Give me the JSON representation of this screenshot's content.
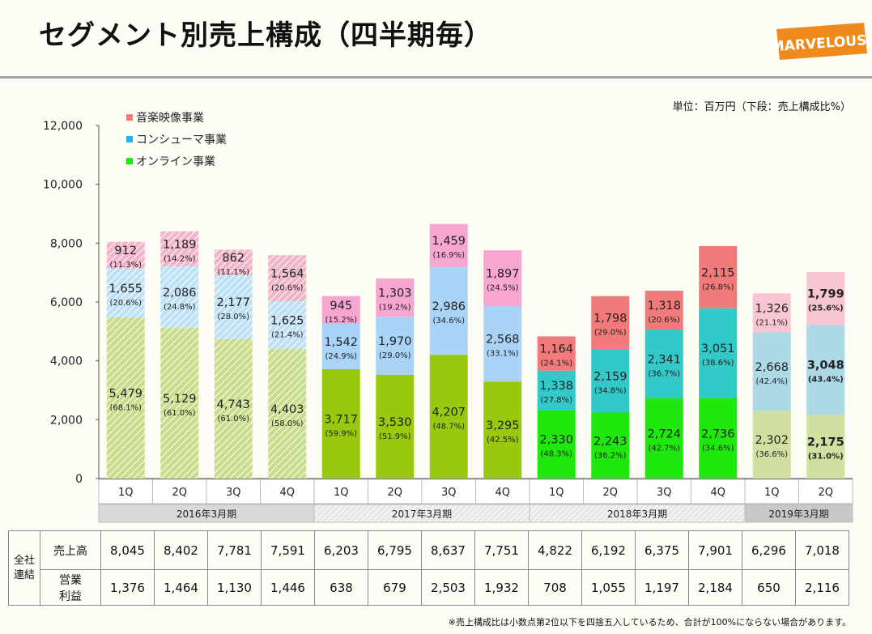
{
  "title": "セグメント別売上構成（四半期毎）",
  "logo_text": "MARVELOUS!",
  "unit_note": "単位：百万円（下段：売上構成比%）",
  "footnote": "※売上構成比は小数点第2位以下を四捨五入しているため、合計が100%にならない場合があります。",
  "chart_data": {
    "type": "bar",
    "stacked": true,
    "ylim": [
      0,
      12000
    ],
    "yticks": [
      "0",
      "2,000",
      "4,000",
      "6,000",
      "8,000",
      "10,000",
      "12,000"
    ],
    "categories": [
      "1Q",
      "2Q",
      "3Q",
      "4Q",
      "1Q",
      "2Q",
      "3Q",
      "4Q",
      "1Q",
      "2Q",
      "3Q",
      "4Q",
      "1Q",
      "2Q"
    ],
    "periods": [
      {
        "label": "2016年3月期",
        "count": 4
      },
      {
        "label": "2017年3月期",
        "count": 4
      },
      {
        "label": "2018年3月期",
        "count": 4
      },
      {
        "label": "2019年3月期",
        "count": 2
      }
    ],
    "legend": [
      "音楽映像事業",
      "コンシューマ事業",
      "オンライン事業"
    ],
    "series": [
      {
        "name": "オンライン事業",
        "values": [
          5479,
          5129,
          4743,
          4403,
          3717,
          3530,
          4207,
          3295,
          2330,
          2243,
          2724,
          2736,
          2302,
          2175
        ],
        "labels": [
          "5,479",
          "5,129",
          "4,743",
          "4,403",
          "3,717",
          "3,530",
          "4,207",
          "3,295",
          "2,330",
          "2,243",
          "2,724",
          "2,736",
          "2,302",
          "2,175"
        ],
        "shares": [
          "(68.1%)",
          "(61.0%)",
          "(61.0%)",
          "(58.0%)",
          "(59.9%)",
          "(51.9%)",
          "(48.7%)",
          "(42.5%)",
          "(48.3%)",
          "(36.2%)",
          "(42.7%)",
          "(34.6%)",
          "(36.6%)",
          "(31.0%)"
        ]
      },
      {
        "name": "コンシューマ事業",
        "values": [
          1655,
          2086,
          2177,
          1625,
          1542,
          1970,
          2986,
          2568,
          1338,
          2159,
          2341,
          3051,
          2668,
          3048
        ],
        "labels": [
          "1,655",
          "2,086",
          "2,177",
          "1,625",
          "1,542",
          "1,970",
          "2,986",
          "2,568",
          "1,338",
          "2,159",
          "2,341",
          "3,051",
          "2,668",
          "3,048"
        ],
        "shares": [
          "(20.6%)",
          "(24.8%)",
          "(28.0%)",
          "(21.4%)",
          "(24.9%)",
          "(29.0%)",
          "(34.6%)",
          "(33.1%)",
          "(27.8%)",
          "(34.8%)",
          "(36.7%)",
          "(38.6%)",
          "(42.4%)",
          "(43.4%)"
        ]
      },
      {
        "name": "音楽映像事業",
        "values": [
          912,
          1189,
          862,
          1564,
          945,
          1303,
          1459,
          1897,
          1164,
          1798,
          1318,
          2115,
          1326,
          1799
        ],
        "labels": [
          "912",
          "1,189",
          "862",
          "1,564",
          "945",
          "1,303",
          "1,459",
          "1,897",
          "1,164",
          "1,798",
          "1,318",
          "2,115",
          "1,326",
          "1,799"
        ],
        "shares": [
          "(11.3%)",
          "(14.2%)",
          "(11.1%)",
          "(20.6%)",
          "(15.2%)",
          "(19.2%)",
          "(16.9%)",
          "(24.5%)",
          "(24.1%)",
          "(29.0%)",
          "(20.6%)",
          "(26.8%)",
          "(21.1%)",
          "(25.6%)"
        ]
      }
    ],
    "colors": {
      "online": [
        "#9dc220",
        "#99c90e",
        "#1ee80c",
        "#cfe0a0"
      ],
      "consumer": [
        "#a8d4ee",
        "#a9d3f7",
        "#33c9c9",
        "#add8e6"
      ],
      "music": [
        "#f0a0c0",
        "#f7a6d2",
        "#f27a7a",
        "#f8c6d2"
      ]
    }
  },
  "table": {
    "group_label": [
      "全社",
      "連結"
    ],
    "rows": [
      {
        "label": "売上高",
        "values": [
          "8,045",
          "8,402",
          "7,781",
          "7,591",
          "6,203",
          "6,795",
          "8,637",
          "7,751",
          "4,822",
          "6,192",
          "6,375",
          "7,901",
          "6,296",
          "7,018"
        ]
      },
      {
        "label": [
          "営業",
          "利益"
        ],
        "values": [
          "1,376",
          "1,464",
          "1,130",
          "1,446",
          "638",
          "679",
          "2,503",
          "1,932",
          "708",
          "1,055",
          "1,197",
          "2,184",
          "650",
          "2,116"
        ]
      }
    ]
  }
}
